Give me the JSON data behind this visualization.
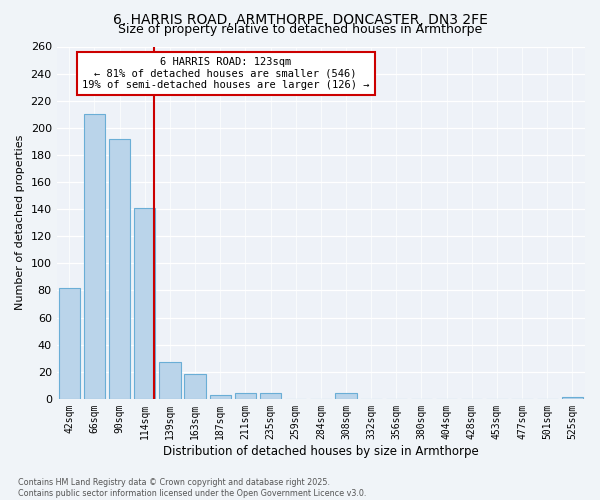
{
  "title": "6, HARRIS ROAD, ARMTHORPE, DONCASTER, DN3 2FE",
  "subtitle": "Size of property relative to detached houses in Armthorpe",
  "xlabel": "Distribution of detached houses by size in Armthorpe",
  "ylabel": "Number of detached properties",
  "bar_labels": [
    "42sqm",
    "66sqm",
    "90sqm",
    "114sqm",
    "139sqm",
    "163sqm",
    "187sqm",
    "211sqm",
    "235sqm",
    "259sqm",
    "284sqm",
    "308sqm",
    "332sqm",
    "356sqm",
    "380sqm",
    "404sqm",
    "428sqm",
    "453sqm",
    "477sqm",
    "501sqm",
    "525sqm"
  ],
  "bar_values": [
    82,
    210,
    192,
    141,
    27,
    18,
    3,
    4,
    4,
    0,
    0,
    4,
    0,
    0,
    0,
    0,
    0,
    0,
    0,
    0,
    1
  ],
  "bar_color": "#bad4ea",
  "bar_edge_color": "#6aaed6",
  "ylim": [
    0,
    260
  ],
  "yticks": [
    0,
    20,
    40,
    60,
    80,
    100,
    120,
    140,
    160,
    180,
    200,
    220,
    240,
    260
  ],
  "vline_x_bar_index": 3.375,
  "vline_color": "#cc0000",
  "annotation_line1": "6 HARRIS ROAD: 123sqm",
  "annotation_line2": "← 81% of detached houses are smaller (546)",
  "annotation_line3": "19% of semi-detached houses are larger (126) →",
  "footer_line1": "Contains HM Land Registry data © Crown copyright and database right 2025.",
  "footer_line2": "Contains public sector information licensed under the Open Government Licence v3.0.",
  "background_color": "#f0f4f8",
  "plot_bg_color": "#eef2f8",
  "title_fontsize": 10,
  "subtitle_fontsize": 9
}
